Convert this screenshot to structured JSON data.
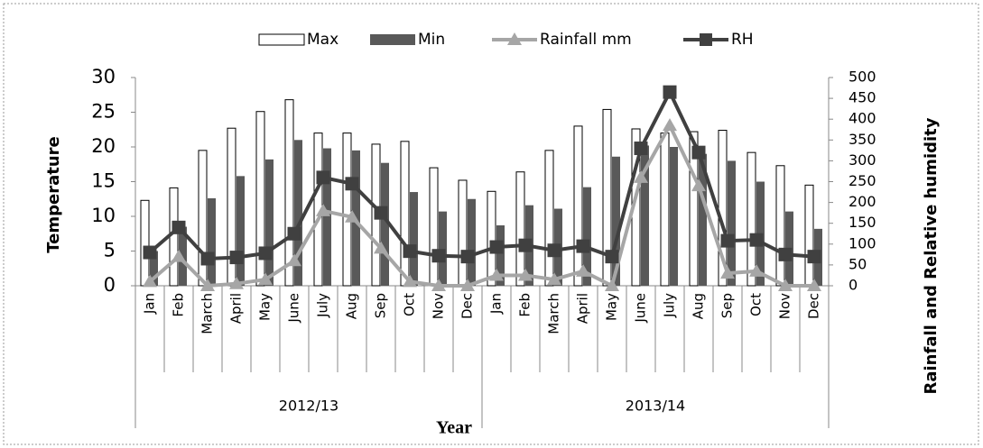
{
  "chart_data": {
    "type": "combo",
    "categories": [
      "Jan",
      "Feb",
      "March",
      "April",
      "May",
      "June",
      "July",
      "Aug",
      "Sep",
      "Oct",
      "Nov",
      "Dec",
      "Jan",
      "Feb",
      "March",
      "April",
      "May",
      "June",
      "July",
      "Aug",
      "Sep",
      "Oct",
      "Nov",
      "Dec"
    ],
    "groups": [
      "2012/13",
      "2013/14"
    ],
    "x_label": "Year",
    "y_label": "Temperature",
    "y2_label": "Rainfall and Relative humidity",
    "ylim": [
      0,
      30
    ],
    "yticks": [
      0,
      5,
      10,
      15,
      20,
      25,
      30
    ],
    "y2lim": [
      0,
      500
    ],
    "y2ticks": [
      0,
      50,
      100,
      150,
      200,
      250,
      300,
      350,
      400,
      450,
      500
    ],
    "legend": "top",
    "series": [
      {
        "name": "Max",
        "type": "bar",
        "color": "#ffffff",
        "values": [
          12.3,
          14.1,
          19.5,
          22.7,
          25.1,
          26.8,
          22,
          22,
          20.4,
          20.8,
          17,
          15.2,
          13.6,
          16.4,
          19.5,
          23,
          25.4,
          22.6,
          22,
          22.2,
          22.4,
          19.2,
          17.3,
          14.5
        ]
      },
      {
        "name": "Min",
        "type": "bar",
        "color": "#595959",
        "values": [
          5,
          8.5,
          12.6,
          15.8,
          18.2,
          21,
          19.8,
          19.5,
          17.7,
          13.5,
          10.7,
          12.5,
          8.7,
          11.6,
          11.1,
          14.2,
          18.6,
          20.2,
          20,
          19,
          18,
          15,
          10.7,
          8.2
        ]
      },
      {
        "name": "Rainfall mm",
        "type": "line",
        "marker": "triangle",
        "axis": "y2",
        "color": "#a6a6a6",
        "values": [
          10,
          70,
          0,
          5,
          15,
          60,
          180,
          165,
          90,
          10,
          0,
          0,
          25,
          25,
          15,
          35,
          0,
          260,
          385,
          240,
          30,
          35,
          0,
          0
        ]
      },
      {
        "name": "RH",
        "type": "line",
        "marker": "square",
        "axis": "y2",
        "color": "#404040",
        "values": [
          80,
          140,
          65,
          68,
          78,
          125,
          260,
          245,
          175,
          83,
          72,
          70,
          93,
          97,
          85,
          95,
          70,
          330,
          465,
          320,
          108,
          110,
          75,
          70
        ]
      }
    ]
  }
}
